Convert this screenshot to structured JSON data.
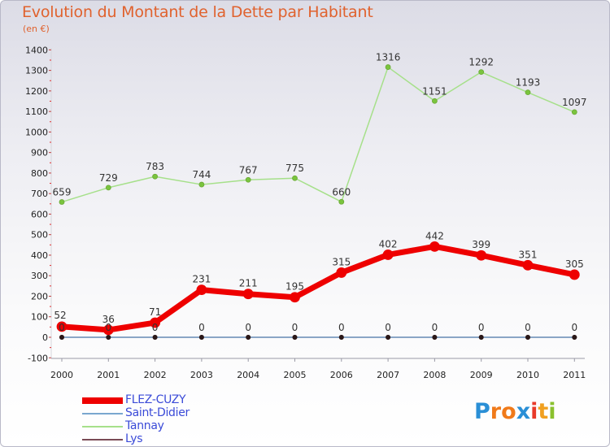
{
  "header": {
    "title": "Evolution du Montant de la Dette par Habitant",
    "unit": "(en €)"
  },
  "brand": {
    "letters": [
      "P",
      "r",
      "o",
      "x",
      "i",
      "t",
      "i"
    ],
    "colors": [
      "#2a8fd6",
      "#f07a1a",
      "#f07a1a",
      "#2a8fd6",
      "#e83a2a",
      "#f0a020",
      "#8ac12e"
    ]
  },
  "chart_data": {
    "type": "line",
    "title": "Evolution du Montant de la Dette par Habitant",
    "subtitle": "(en €)",
    "x": [
      "2000",
      "2001",
      "2002",
      "2003",
      "2004",
      "2005",
      "2006",
      "2007",
      "2008",
      "2009",
      "2010",
      "2011"
    ],
    "ylim": [
      -100,
      1400
    ],
    "yticks": [
      "-100",
      "0",
      "100",
      "200",
      "300",
      "400",
      "500",
      "600",
      "700",
      "800",
      "900",
      "1000",
      "1100",
      "1200",
      "1300",
      "1400"
    ],
    "grid": false,
    "legend_position": "bottom-left",
    "series": [
      {
        "name": "FLEZ-CUZY",
        "color": "#ee0000",
        "values": [
          52,
          36,
          71,
          231,
          211,
          195,
          315,
          402,
          442,
          399,
          351,
          305
        ],
        "labels": [
          "52",
          "36",
          "71",
          "231",
          "211",
          "195",
          "315",
          "402",
          "442",
          "399",
          "351",
          "305"
        ]
      },
      {
        "name": "Saint-Didier",
        "color": "#7aa7cf",
        "values": [
          0,
          0,
          0,
          0,
          0,
          0,
          0,
          0,
          0,
          0,
          0,
          0
        ],
        "labels": [
          "0",
          "0",
          "0",
          "0",
          "0",
          "0",
          "0",
          "0",
          "0",
          "0",
          "0",
          "0"
        ]
      },
      {
        "name": "Tannay",
        "color": "#a6e08a",
        "values": [
          659,
          729,
          783,
          744,
          767,
          775,
          660,
          1316,
          1151,
          1292,
          1193,
          1097
        ],
        "labels": [
          "659",
          "729",
          "783",
          "744",
          "767",
          "775",
          "660",
          "1316",
          "1151",
          "1292",
          "1193",
          "1097"
        ]
      },
      {
        "name": "Lys",
        "color": "#7a4a55",
        "values": [
          0,
          0,
          0,
          0,
          0,
          0,
          0,
          0,
          0,
          0,
          0,
          0
        ],
        "labels": []
      }
    ]
  }
}
